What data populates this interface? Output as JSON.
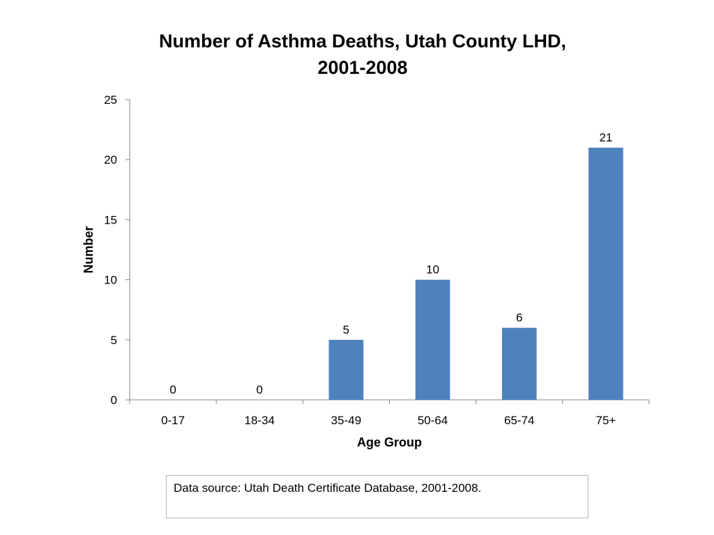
{
  "chart_data": {
    "type": "bar",
    "title": [
      "Number of Asthma Deaths, Utah County LHD,",
      "2001-2008"
    ],
    "xlabel": "Age Group",
    "ylabel": "Number",
    "categories": [
      "0-17",
      "18-34",
      "35-49",
      "50-64",
      "65-74",
      "75+"
    ],
    "values": [
      0,
      0,
      5,
      10,
      6,
      21
    ],
    "data_labels": [
      "0",
      "0",
      "5",
      "10",
      "6",
      "21"
    ],
    "ylim": [
      0,
      25
    ],
    "yticks": [
      0,
      5,
      10,
      15,
      20,
      25
    ],
    "ytick_labels": [
      "0",
      "5",
      "10",
      "15",
      "20",
      "25"
    ],
    "bar_color": "#4f81bd",
    "grid": false,
    "legend": "none"
  },
  "footer": {
    "source": "Data source: Utah Death Certificate Database, 2001-2008."
  }
}
